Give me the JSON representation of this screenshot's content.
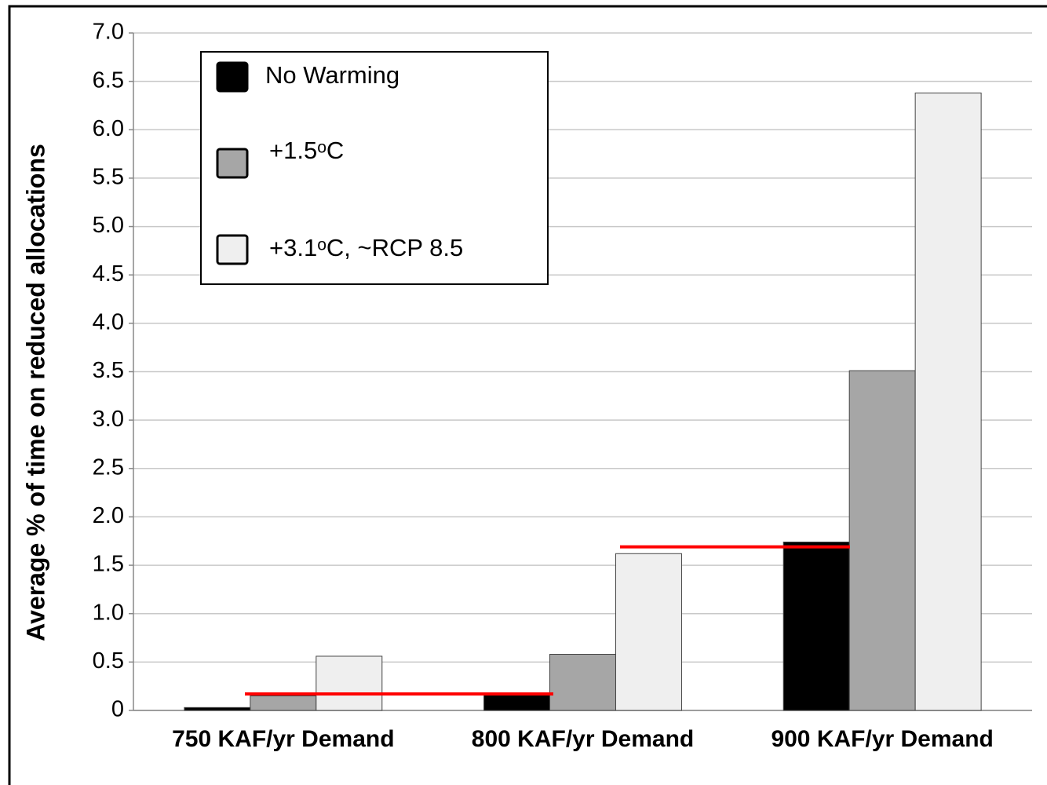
{
  "chart_data": {
    "type": "bar",
    "y_label": "Average % of time on reduced allocations",
    "categories": [
      "750 KAF/yr Demand",
      "800 KAF/yr Demand",
      "900 KAF/yr Demand"
    ],
    "series": [
      {
        "name": "No Warming",
        "color": "#000000",
        "values": [
          0.03,
          0.17,
          1.74
        ]
      },
      {
        "name": "+1.5ᵒC",
        "color": "#a6a6a6",
        "values": [
          0.15,
          0.58,
          3.51
        ]
      },
      {
        "name": "+3.1ᵒC, ~RCP 8.5",
        "color": "#efefef",
        "values": [
          0.56,
          1.62,
          6.38
        ]
      }
    ],
    "reference_lines": [
      {
        "value": 0.17,
        "color": "#ff0000"
      },
      {
        "value": 1.69,
        "color": "#ff0000"
      }
    ],
    "ylim": [
      0,
      7
    ],
    "yticks": [
      0,
      0.5,
      {
        "value": 1,
        "label": "1.0"
      },
      1.5,
      {
        "value": 2,
        "label": "2.0"
      },
      2.5,
      {
        "value": 3,
        "label": "3.0"
      },
      3.5,
      {
        "value": 4,
        "label": "4.0"
      },
      4.5,
      {
        "value": 5,
        "label": "5.0"
      },
      5.5,
      {
        "value": 6,
        "label": "6.0"
      },
      6.5,
      {
        "value": 7,
        "label": "7.0"
      }
    ],
    "grid": true,
    "legend": "upper left"
  }
}
